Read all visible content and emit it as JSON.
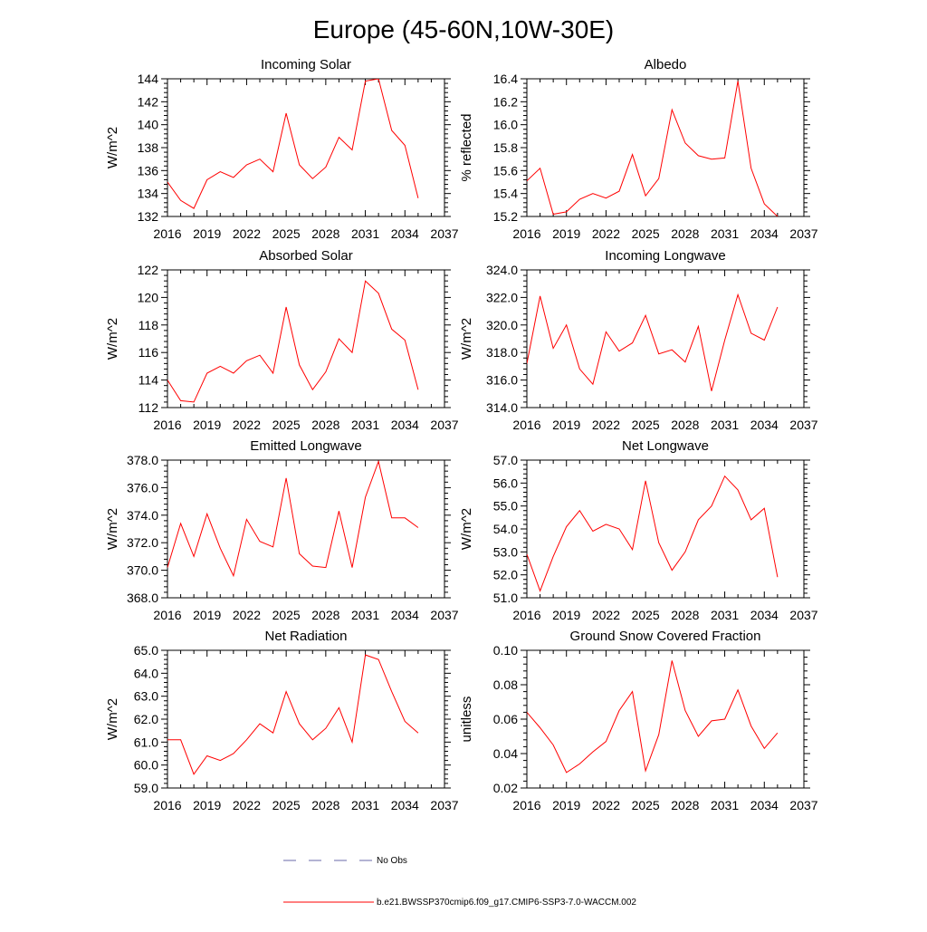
{
  "figure": {
    "title": "Europe (45-60N,10W-30E)",
    "legend": [
      {
        "label": "No Obs",
        "color": "#6a6aa8",
        "dash": "dashed"
      },
      {
        "label": "b.e21.BWSSP370cmip6.f09_g17.CMIP6-SSP3-7.0-WACCM.002",
        "color": "#ff0000",
        "dash": "solid"
      }
    ]
  },
  "chart_data": [
    {
      "type": "line",
      "title": "Incoming Solar",
      "ylabel": "W/m^2",
      "xlim": [
        2016,
        2037
      ],
      "ylim": [
        132,
        144
      ],
      "xticks": [
        "2016",
        "2019",
        "2022",
        "2025",
        "2028",
        "2031",
        "2034",
        "2037"
      ],
      "yticks": [
        "132",
        "134",
        "136",
        "138",
        "140",
        "142",
        "144"
      ],
      "x": [
        2016,
        2017,
        2018,
        2019,
        2020,
        2021,
        2022,
        2023,
        2024,
        2025,
        2026,
        2027,
        2028,
        2029,
        2030,
        2031,
        2032,
        2033,
        2034,
        2035
      ],
      "series": [
        {
          "values": [
            135.0,
            133.4,
            132.7,
            135.2,
            135.9,
            135.4,
            136.5,
            137.0,
            135.9,
            141.0,
            136.5,
            135.3,
            136.3,
            138.9,
            137.8,
            143.8,
            144.0,
            139.5,
            138.2,
            133.6
          ]
        }
      ]
    },
    {
      "type": "line",
      "title": "Albedo",
      "ylabel": "% reflected",
      "xlim": [
        2016,
        2037
      ],
      "ylim": [
        15.2,
        16.4
      ],
      "xticks": [
        "2016",
        "2019",
        "2022",
        "2025",
        "2028",
        "2031",
        "2034",
        "2037"
      ],
      "yticks": [
        "15.2",
        "15.4",
        "15.6",
        "15.8",
        "16.0",
        "16.2",
        "16.4"
      ],
      "x": [
        2016,
        2017,
        2018,
        2019,
        2020,
        2021,
        2022,
        2023,
        2024,
        2025,
        2026,
        2027,
        2028,
        2029,
        2030,
        2031,
        2032,
        2033,
        2034,
        2035
      ],
      "series": [
        {
          "values": [
            15.51,
            15.62,
            15.22,
            15.24,
            15.35,
            15.4,
            15.36,
            15.42,
            15.74,
            15.38,
            15.53,
            16.13,
            15.84,
            15.73,
            15.7,
            15.71,
            16.38,
            15.62,
            15.31,
            15.2
          ]
        }
      ]
    },
    {
      "type": "line",
      "title": "Absorbed Solar",
      "ylabel": "W/m^2",
      "xlim": [
        2016,
        2037
      ],
      "ylim": [
        112,
        122
      ],
      "xticks": [
        "2016",
        "2019",
        "2022",
        "2025",
        "2028",
        "2031",
        "2034",
        "2037"
      ],
      "yticks": [
        "112",
        "114",
        "116",
        "118",
        "120",
        "122"
      ],
      "x": [
        2016,
        2017,
        2018,
        2019,
        2020,
        2021,
        2022,
        2023,
        2024,
        2025,
        2026,
        2027,
        2028,
        2029,
        2030,
        2031,
        2032,
        2033,
        2034,
        2035
      ],
      "series": [
        {
          "values": [
            114.0,
            112.5,
            112.4,
            114.5,
            115.0,
            114.5,
            115.4,
            115.8,
            114.5,
            119.3,
            115.1,
            113.3,
            114.6,
            117.0,
            116.0,
            121.2,
            120.3,
            117.7,
            116.9,
            113.3
          ]
        }
      ]
    },
    {
      "type": "line",
      "title": "Incoming Longwave",
      "ylabel": "W/m^2",
      "xlim": [
        2016,
        2037
      ],
      "ylim": [
        314.0,
        324.0
      ],
      "xticks": [
        "2016",
        "2019",
        "2022",
        "2025",
        "2028",
        "2031",
        "2034",
        "2037"
      ],
      "yticks": [
        "314.0",
        "316.0",
        "318.0",
        "320.0",
        "322.0",
        "324.0"
      ],
      "x": [
        2016,
        2017,
        2018,
        2019,
        2020,
        2021,
        2022,
        2023,
        2024,
        2025,
        2026,
        2027,
        2028,
        2029,
        2030,
        2031,
        2032,
        2033,
        2034,
        2035
      ],
      "series": [
        {
          "values": [
            317.2,
            322.1,
            318.3,
            320.0,
            316.8,
            315.7,
            319.5,
            318.1,
            318.7,
            320.7,
            317.9,
            318.2,
            317.3,
            319.9,
            315.2,
            318.9,
            322.2,
            319.4,
            318.9,
            321.3
          ]
        }
      ]
    },
    {
      "type": "line",
      "title": "Emitted Longwave",
      "ylabel": "W/m^2",
      "xlim": [
        2016,
        2037
      ],
      "ylim": [
        368.0,
        378.0
      ],
      "xticks": [
        "2016",
        "2019",
        "2022",
        "2025",
        "2028",
        "2031",
        "2034",
        "2037"
      ],
      "yticks": [
        "368.0",
        "370.0",
        "372.0",
        "374.0",
        "376.0",
        "378.0"
      ],
      "x": [
        2016,
        2017,
        2018,
        2019,
        2020,
        2021,
        2022,
        2023,
        2024,
        2025,
        2026,
        2027,
        2028,
        2029,
        2030,
        2031,
        2032,
        2033,
        2034,
        2035
      ],
      "series": [
        {
          "values": [
            370.2,
            373.4,
            371.0,
            374.1,
            371.6,
            369.6,
            373.7,
            372.1,
            371.7,
            376.7,
            371.2,
            370.3,
            370.2,
            374.3,
            370.2,
            375.3,
            377.9,
            373.8,
            373.8,
            373.1
          ]
        }
      ]
    },
    {
      "type": "line",
      "title": "Net Longwave",
      "ylabel": "W/m^2",
      "xlim": [
        2016,
        2037
      ],
      "ylim": [
        51.0,
        57.0
      ],
      "xticks": [
        "2016",
        "2019",
        "2022",
        "2025",
        "2028",
        "2031",
        "2034",
        "2037"
      ],
      "yticks": [
        "51.0",
        "52.0",
        "53.0",
        "54.0",
        "55.0",
        "56.0",
        "57.0"
      ],
      "x": [
        2016,
        2017,
        2018,
        2019,
        2020,
        2021,
        2022,
        2023,
        2024,
        2025,
        2026,
        2027,
        2028,
        2029,
        2030,
        2031,
        2032,
        2033,
        2034,
        2035
      ],
      "series": [
        {
          "values": [
            52.9,
            51.3,
            52.8,
            54.1,
            54.8,
            53.9,
            54.2,
            54.0,
            53.1,
            56.1,
            53.4,
            52.2,
            53.0,
            54.4,
            55.0,
            56.3,
            55.7,
            54.4,
            54.9,
            51.9
          ]
        }
      ]
    },
    {
      "type": "line",
      "title": "Net Radiation",
      "ylabel": "W/m^2",
      "xlim": [
        2016,
        2037
      ],
      "ylim": [
        59.0,
        65.0
      ],
      "xticks": [
        "2016",
        "2019",
        "2022",
        "2025",
        "2028",
        "2031",
        "2034",
        "2037"
      ],
      "yticks": [
        "59.0",
        "60.0",
        "61.0",
        "62.0",
        "63.0",
        "64.0",
        "65.0"
      ],
      "x": [
        2016,
        2017,
        2018,
        2019,
        2020,
        2021,
        2022,
        2023,
        2024,
        2025,
        2026,
        2027,
        2028,
        2029,
        2030,
        2031,
        2032,
        2033,
        2034,
        2035
      ],
      "series": [
        {
          "values": [
            61.1,
            61.1,
            59.6,
            60.4,
            60.2,
            60.5,
            61.1,
            61.8,
            61.4,
            63.2,
            61.8,
            61.1,
            61.6,
            62.5,
            61.0,
            64.8,
            64.6,
            63.2,
            61.9,
            61.4
          ]
        }
      ]
    },
    {
      "type": "line",
      "title": "Ground Snow Covered Fraction",
      "ylabel": "unitless",
      "xlim": [
        2016,
        2037
      ],
      "ylim": [
        0.02,
        0.1
      ],
      "xticks": [
        "2016",
        "2019",
        "2022",
        "2025",
        "2028",
        "2031",
        "2034",
        "2037"
      ],
      "yticks": [
        "0.02",
        "0.04",
        "0.06",
        "0.08",
        "0.10"
      ],
      "x": [
        2016,
        2017,
        2018,
        2019,
        2020,
        2021,
        2022,
        2023,
        2024,
        2025,
        2026,
        2027,
        2028,
        2029,
        2030,
        2031,
        2032,
        2033,
        2034,
        2035
      ],
      "series": [
        {
          "values": [
            0.064,
            0.055,
            0.045,
            0.029,
            0.034,
            0.041,
            0.047,
            0.065,
            0.076,
            0.03,
            0.051,
            0.094,
            0.065,
            0.05,
            0.059,
            0.06,
            0.077,
            0.056,
            0.043,
            0.052
          ]
        }
      ]
    }
  ]
}
